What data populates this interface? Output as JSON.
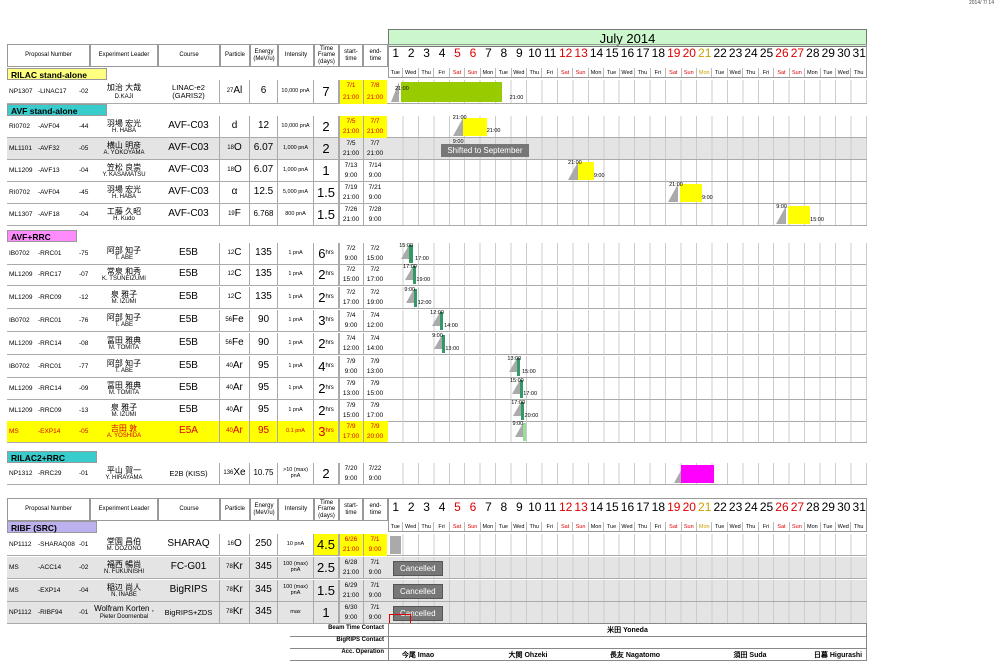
{
  "date_stamp": "2014/ 7/ 14",
  "month": "July 2014",
  "headers": {
    "proposal": "Proposal Number",
    "leader": "Experiment Leader",
    "course": "Course",
    "particle": "Particle",
    "energy": "Energy (MeV/u)",
    "intensity": "Intensity",
    "timeframe": "Time Frame (days)",
    "start": "start-time",
    "end": "end-time"
  },
  "days": [
    "1",
    "2",
    "3",
    "4",
    "5",
    "6",
    "7",
    "8",
    "9",
    "10",
    "11",
    "12",
    "13",
    "14",
    "15",
    "16",
    "17",
    "18",
    "19",
    "20",
    "21",
    "22",
    "23",
    "24",
    "25",
    "26",
    "27",
    "28",
    "29",
    "30",
    "31"
  ],
  "dows": [
    "Tue",
    "Wed",
    "Thu",
    "Fri",
    "Sat",
    "Sun",
    "Mon",
    "Tue",
    "Wed",
    "Thu",
    "Fri",
    "Sat",
    "Sun",
    "Mon",
    "Tue",
    "Wed",
    "Thu",
    "Fri",
    "Sat",
    "Sun",
    "Mon",
    "Tue",
    "Wed",
    "Thu",
    "Fri",
    "Sat",
    "Sun",
    "Mon",
    "Tue",
    "Wed",
    "Thu"
  ],
  "sections": {
    "rilac": "RILAC stand-alone",
    "avf": "AVF stand-alone",
    "avfrrc": "AVF+RRC",
    "rilac2": "RILAC2+RRC",
    "ribf": "RIBF (SRC)"
  },
  "rows": [
    {
      "p1": "NP1307",
      "p2": "-LINAC17",
      "p3": "-02",
      "l1": "加治 大哉",
      "l2": "D.KAJI",
      "c": "LINAC-e2 (GARIS2)",
      "mass": "27",
      "el": "Al",
      "en": "6",
      "int": "10,000 pnA",
      "tf": "7",
      "s1": "7/1",
      "s2": "21:00",
      "e1": "7/8",
      "e2": "21:00"
    },
    {
      "p1": "RI0702",
      "p2": "-AVF04",
      "p3": "-44",
      "l1": "羽場 宏光",
      "l2": "H. HABA",
      "c": "AVF-C03",
      "mass": "",
      "el": "d",
      "en": "12",
      "int": "10,000 pnA",
      "tf": "2",
      "s1": "7/5",
      "s2": "21:00",
      "e1": "7/7",
      "e2": "21:00"
    },
    {
      "p1": "ML1101",
      "p2": "-AVF32",
      "p3": "-05",
      "l1": "横山 明彦",
      "l2": "A. YOKOYAMA",
      "c": "AVF-C03",
      "mass": "18",
      "el": "O",
      "en": "6.07",
      "int": "1,000 pnA",
      "tf": "2",
      "s1": "7/5",
      "s2": "21:00",
      "e1": "7/7",
      "e2": "21:00"
    },
    {
      "p1": "ML1209",
      "p2": "-AVF13",
      "p3": "-04",
      "l1": "笠松 良崇",
      "l2": "Y. KASAMATSU",
      "c": "AVF-C03",
      "mass": "18",
      "el": "O",
      "en": "6.07",
      "int": "1,000 pnA",
      "tf": "1",
      "s1": "7/13",
      "s2": "9:00",
      "e1": "7/14",
      "e2": "9:00"
    },
    {
      "p1": "RI0702",
      "p2": "-AVF04",
      "p3": "-45",
      "l1": "羽場 宏光",
      "l2": "H. HABA",
      "c": "AVF-C03",
      "mass": "",
      "el": "α",
      "en": "12.5",
      "int": "5,000 pnA",
      "tf": "1.5",
      "s1": "7/19",
      "s2": "21:00",
      "e1": "7/21",
      "e2": "9:00"
    },
    {
      "p1": "ML1307",
      "p2": "-AVF18",
      "p3": "-04",
      "l1": "工藤 久昭",
      "l2": "H. Kudo",
      "c": "AVF-C03",
      "mass": "19",
      "el": "F",
      "en": "6.768",
      "int": "800 pnA",
      "tf": "1.5",
      "s1": "7/26",
      "s2": "21:00",
      "e1": "7/28",
      "e2": "9:00"
    },
    {
      "p1": "IB0702",
      "p2": "-RRC01",
      "p3": "-75",
      "l1": "阿部 知子",
      "l2": "T. ABE",
      "c": "E5B",
      "mass": "12",
      "el": "C",
      "en": "135",
      "int": "1 pnA",
      "tf": "6",
      "tfu": "hrs",
      "s1": "7/2",
      "s2": "9:00",
      "e1": "7/2",
      "e2": "15:00"
    },
    {
      "p1": "ML1209",
      "p2": "-RRC17",
      "p3": "-07",
      "l1": "常泉 和秀",
      "l2": "K. TSUNEIZUMI",
      "c": "E5B",
      "mass": "12",
      "el": "C",
      "en": "135",
      "int": "1 pnA",
      "tf": "2",
      "tfu": "hrs",
      "s1": "7/2",
      "s2": "15:00",
      "e1": "7/2",
      "e2": "17:00"
    },
    {
      "p1": "ML1209",
      "p2": "-RRC09",
      "p3": "-12",
      "l1": "泉 雅子",
      "l2": "M. IZUMI",
      "c": "E5B",
      "mass": "12",
      "el": "C",
      "en": "135",
      "int": "1 pnA",
      "tf": "2",
      "tfu": "hrs",
      "s1": "7/2",
      "s2": "17:00",
      "e1": "7/2",
      "e2": "19:00"
    },
    {
      "p1": "IB0702",
      "p2": "-RRC01",
      "p3": "-76",
      "l1": "阿部 知子",
      "l2": "T. ABE",
      "c": "E5B",
      "mass": "56",
      "el": "Fe",
      "en": "90",
      "int": "1 pnA",
      "tf": "3",
      "tfu": "hrs",
      "s1": "7/4",
      "s2": "9:00",
      "e1": "7/4",
      "e2": "12:00"
    },
    {
      "p1": "ML1209",
      "p2": "-RRC14",
      "p3": "-08",
      "l1": "冨田 雅典",
      "l2": "M. TOMITA",
      "c": "E5B",
      "mass": "56",
      "el": "Fe",
      "en": "90",
      "int": "1 pnA",
      "tf": "2",
      "tfu": "hrs",
      "s1": "7/4",
      "s2": "12:00",
      "e1": "7/4",
      "e2": "14:00"
    },
    {
      "p1": "IB0702",
      "p2": "-RRC01",
      "p3": "-77",
      "l1": "阿部 知子",
      "l2": "T. ABE",
      "c": "E5B",
      "mass": "40",
      "el": "Ar",
      "en": "95",
      "int": "1 pnA",
      "tf": "4",
      "tfu": "hrs",
      "s1": "7/9",
      "s2": "9:00",
      "e1": "7/9",
      "e2": "13:00"
    },
    {
      "p1": "ML1209",
      "p2": "-RRC14",
      "p3": "-09",
      "l1": "冨田 雅典",
      "l2": "M. TOMITA",
      "c": "E5B",
      "mass": "40",
      "el": "Ar",
      "en": "95",
      "int": "1 pnA",
      "tf": "2",
      "tfu": "hrs",
      "s1": "7/9",
      "s2": "13:00",
      "e1": "7/9",
      "e2": "15:00"
    },
    {
      "p1": "ML1209",
      "p2": "-RRC09",
      "p3": "-13",
      "l1": "泉 雅子",
      "l2": "M. IZUMI",
      "c": "E5B",
      "mass": "40",
      "el": "Ar",
      "en": "95",
      "int": "1 pnA",
      "tf": "2",
      "tfu": "hrs",
      "s1": "7/9",
      "s2": "15:00",
      "e1": "7/9",
      "e2": "17:00"
    },
    {
      "p1": "MS",
      "p2": "-EXP14",
      "p3": "-05",
      "l1": "吉田 敦",
      "l2": "A. YOSHIDA",
      "c": "E5A",
      "mass": "40",
      "el": "Ar",
      "en": "95",
      "int": "0.1 pnA",
      "tf": "3",
      "tfu": "hrs",
      "s1": "7/9",
      "s2": "17:00",
      "e1": "7/9",
      "e2": "20:00"
    },
    {
      "p1": "NP1312",
      "p2": "-RRC29",
      "p3": "-01",
      "l1": "平山 賀一",
      "l2": "Y. HIRAYAMA",
      "c": "E2B (KISS)",
      "mass": "136",
      "el": "Xe",
      "en": "10.75",
      "int": ">10 (max) pnA",
      "tf": "2",
      "s1": "7/20",
      "s2": "9:00",
      "e1": "7/22",
      "e2": "9:00"
    },
    {
      "p1": "NP1112",
      "p2": "-SHARAQ08",
      "p3": "-01",
      "l1": "堂園 昌伯",
      "l2": "M. DOZONO",
      "c": "SHARAQ",
      "mass": "16",
      "el": "O",
      "en": "250",
      "int": "10 pnA",
      "tf": "4.5",
      "s1": "6/26",
      "s2": "21:00",
      "e1": "7/1",
      "e2": "9:00"
    },
    {
      "p1": "MS",
      "p2": "-ACC14",
      "p3": "-02",
      "l1": "福西 暢尚",
      "l2": "N. FUKUNISHI",
      "c": "FC-G01",
      "mass": "78",
      "el": "Kr",
      "en": "345",
      "int": "100 (max) pnA",
      "tf": "2.5",
      "s1": "6/28",
      "s2": "21:00",
      "e1": "7/1",
      "e2": "9:00"
    },
    {
      "p1": "MS",
      "p2": "-EXP14",
      "p3": "-04",
      "l1": "稲辺 尚人",
      "l2": "N. INABE",
      "c": "BigRIPS",
      "mass": "78",
      "el": "Kr",
      "en": "345",
      "int": "100 (max) pnA",
      "tf": "1.5",
      "s1": "6/29",
      "s2": "21:00",
      "e1": "7/1",
      "e2": "9:00"
    },
    {
      "p1": "NP1112",
      "p2": "-RIBF94",
      "p3": "-01",
      "l1": "Wolfram Korten ,",
      "l2": "Pieter Doornenbal",
      "c": "BigRIPS+ZDS",
      "mass": "78",
      "el": "Kr",
      "en": "345",
      "int": "max",
      "tf": "1",
      "s1": "6/30",
      "s2": "9:00",
      "e1": "7/1",
      "e2": "9:00"
    }
  ],
  "bar_labels": [
    "21:00",
    "21:00",
    "21:00",
    "21:00",
    "9:00",
    "9:00",
    "21:00",
    "9:00",
    "21:00",
    "9:00",
    "9:00",
    "15:00",
    "15:00",
    "17:00",
    "17:00",
    "19:00",
    "9:00",
    "12:00",
    "12:00",
    "14:00",
    "9:00",
    "13:00",
    "13:00",
    "15:00",
    "15:00",
    "17:00",
    "17:00",
    "20:00",
    "9:00"
  ],
  "notes": {
    "shifted": "Shifted to September",
    "cancelled": "Cancelled"
  },
  "footer": {
    "beam_time_contact": "Beam Time Contact",
    "bigrips_contact": "BigRIPS Contact",
    "acc_operation": "Acc. Operation",
    "beam_name": "米田 Yoneda",
    "ops": [
      "今尾 Imao",
      "大関 Ohzeki",
      "長友 Nagatomo",
      "須田 Suda",
      "日暮 Higurashi"
    ]
  },
  "colors": {
    "green": "#99cc00",
    "yellow": "#ffff00",
    "teal": "#339966",
    "magenta": "#ff00ff",
    "red": "#dd0000"
  }
}
